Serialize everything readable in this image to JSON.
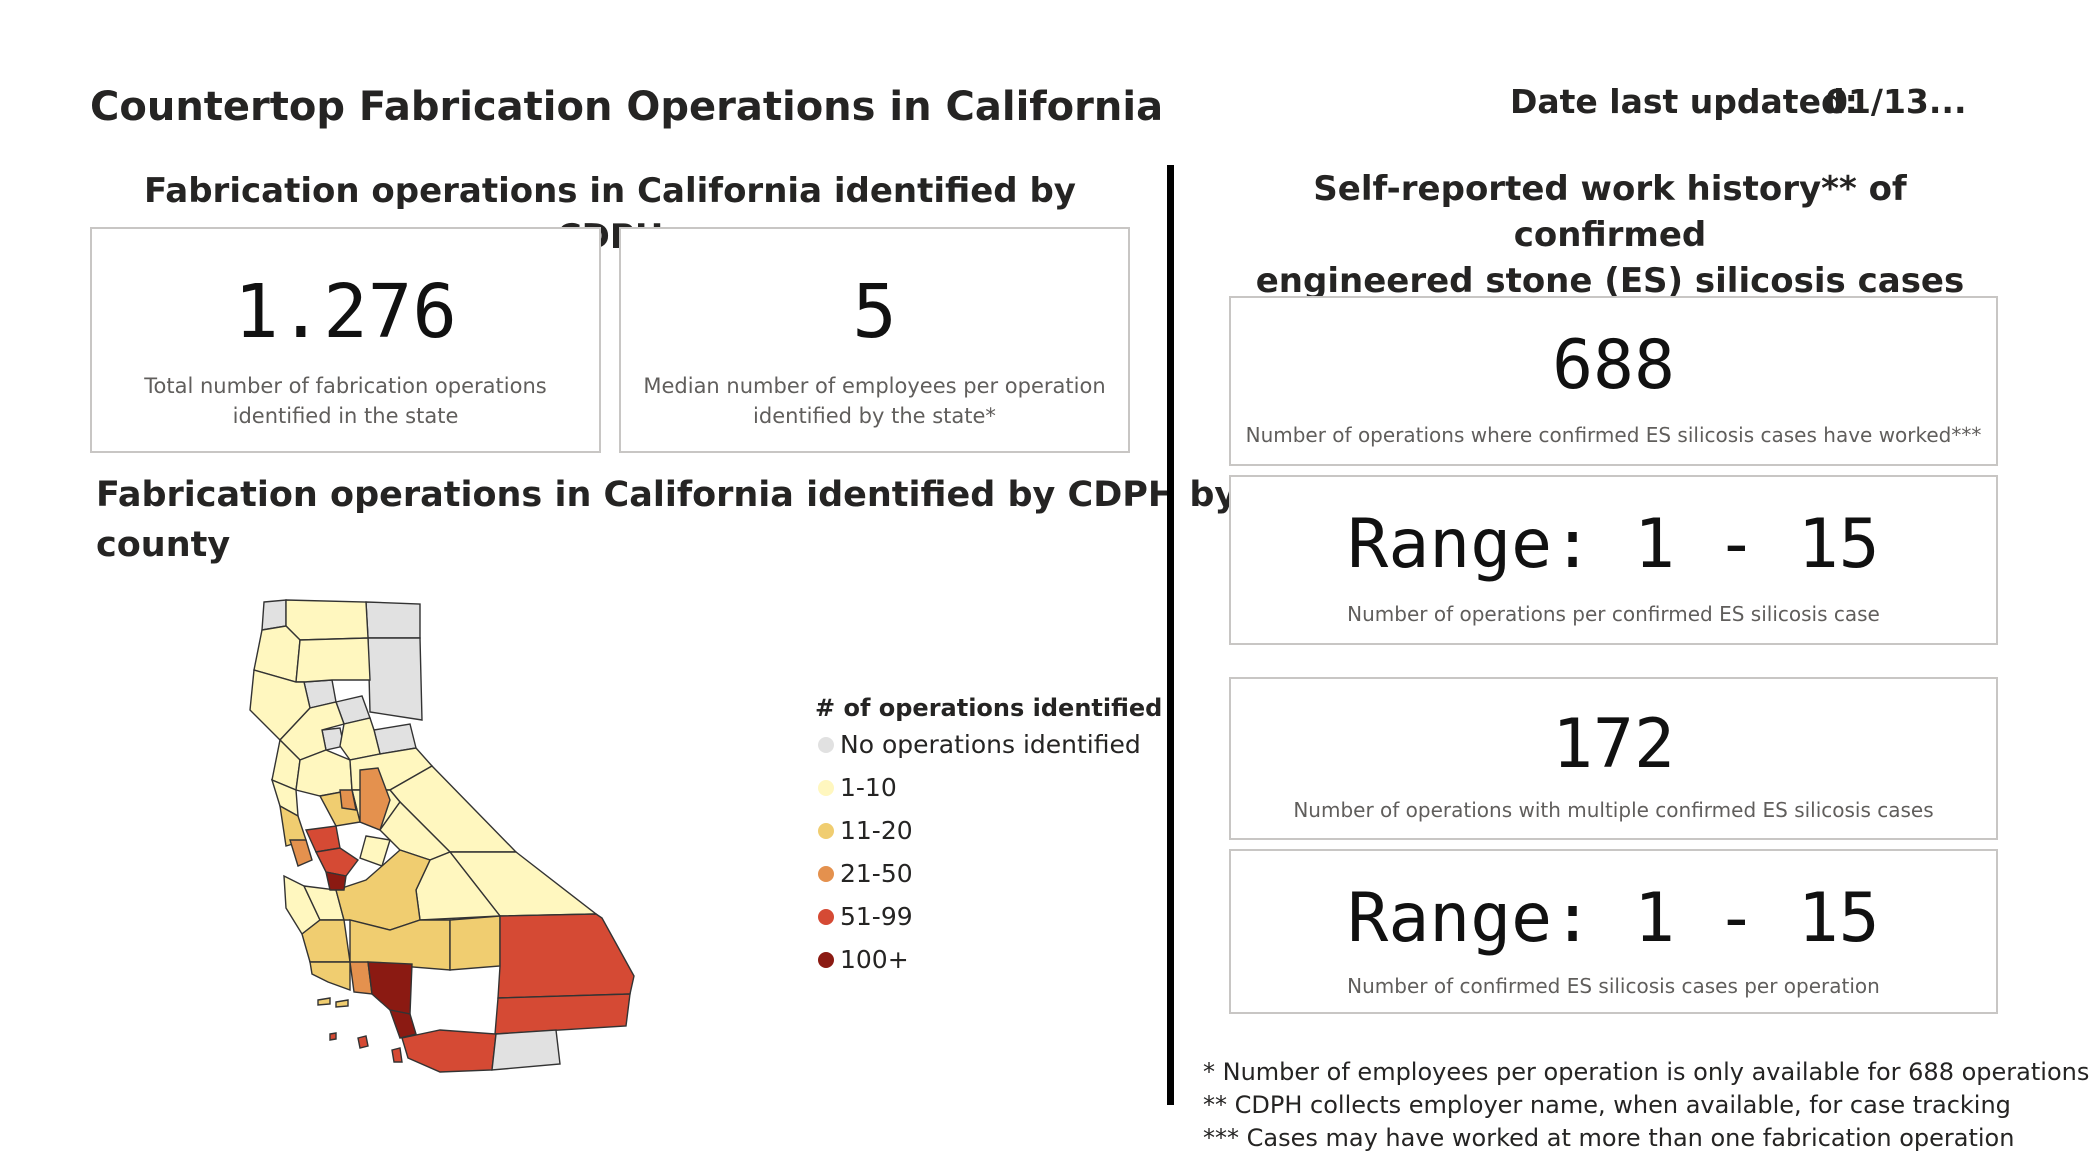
{
  "header": {
    "title": "Countertop Fabrication Operations in California",
    "date_label": "Date last updated:",
    "date_value": "01/13..."
  },
  "left": {
    "section_title": "Fabrication operations in California identified by CDPH",
    "cards": [
      {
        "value": "1.276",
        "caption_line1": "Total number of fabrication operations",
        "caption_line2": "identified in the state"
      },
      {
        "value": "5",
        "caption_line1": "Median number of employees per operation",
        "caption_line2": "identified by the state*"
      }
    ],
    "map_title_line1": "Fabrication operations in California identified by CDPH by",
    "map_title_line2": "county",
    "legend": {
      "title": "# of operations identified",
      "items": [
        {
          "label": "No operations identified",
          "color": "#e1e1e1"
        },
        {
          "label": "1-10",
          "color": "#fff7bf"
        },
        {
          "label": "11-20",
          "color": "#f0cd70"
        },
        {
          "label": "21-50",
          "color": "#e4914e"
        },
        {
          "label": "51-99",
          "color": "#d54a34"
        },
        {
          "label": "100+",
          "color": "#8b1a12"
        }
      ]
    }
  },
  "right": {
    "section_title_line1": "Self-reported work history** of confirmed",
    "section_title_line2": "engineered stone (ES) silicosis cases",
    "cards": [
      {
        "value": "688",
        "caption": "Number of operations where confirmed ES silicosis cases have worked***"
      },
      {
        "value": "Range: 1 - 15",
        "caption": "Number of operations per confirmed ES silicosis case"
      },
      {
        "value": "172",
        "caption": "Number of operations with multiple confirmed ES silicosis cases"
      },
      {
        "value": "Range: 1 - 15",
        "caption": "Number of confirmed ES silicosis cases per operation"
      }
    ],
    "footnotes": [
      "* Number of employees per operation is only available for 688 operations",
      "** CDPH collects employer name, when available, for case tracking",
      "*** Cases may have worked at more than one fabrication operation"
    ]
  }
}
